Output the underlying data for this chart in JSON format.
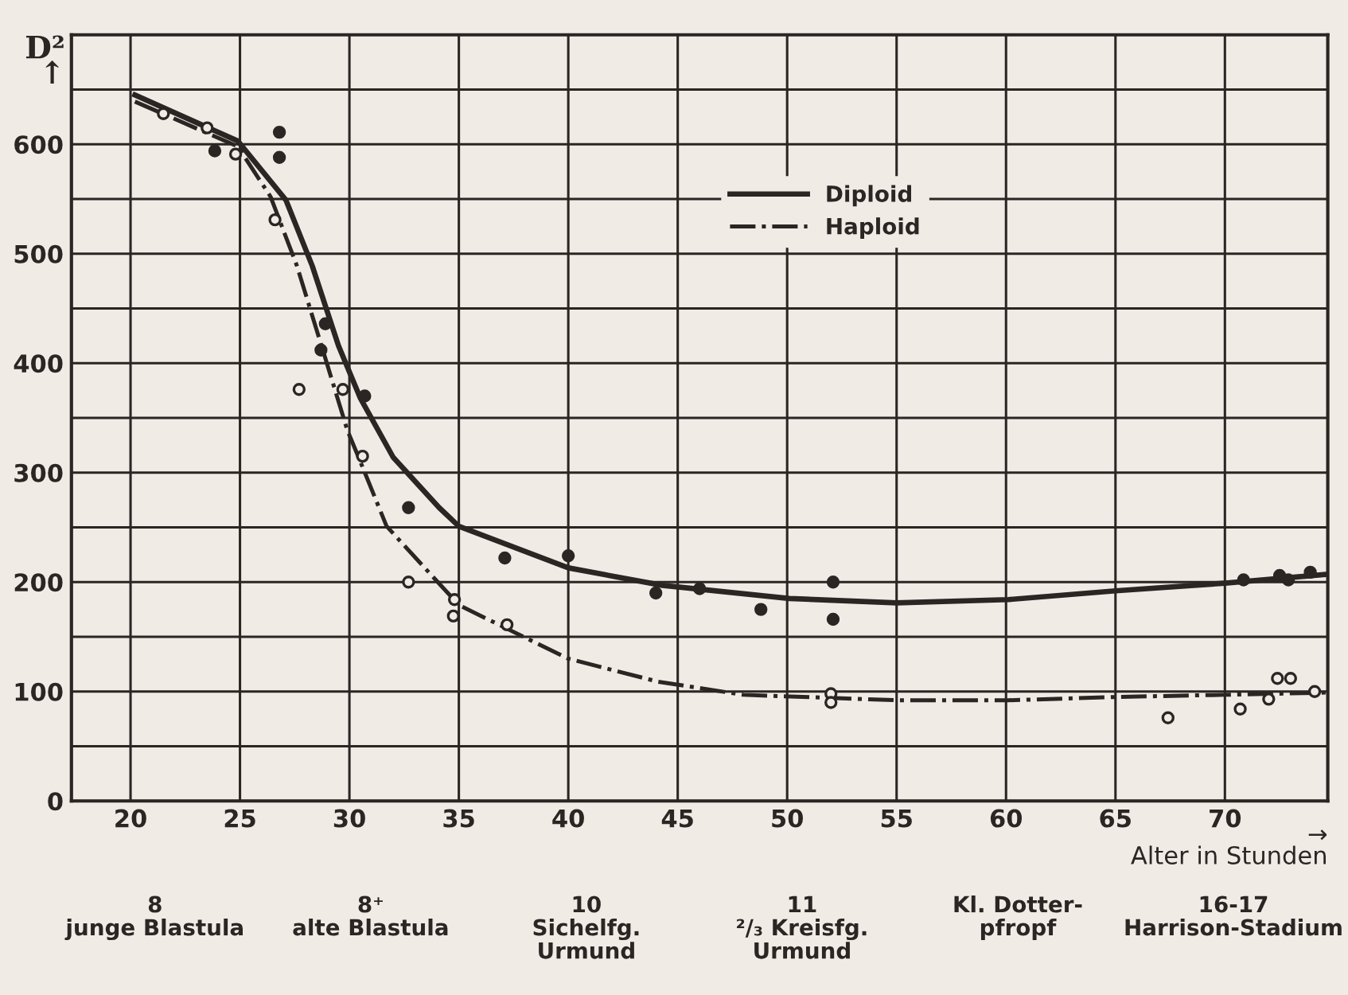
{
  "chart_data": {
    "type": "line",
    "ylabel": "D²\n↑",
    "xlabel": "→\nAlter in Stunden",
    "xlim": [
      17.3,
      74.7
    ],
    "ylim": [
      0,
      700
    ],
    "xticks": [
      20,
      25,
      30,
      35,
      40,
      45,
      50,
      55,
      60,
      65,
      70
    ],
    "yticks": [
      0,
      {
        "value": 50,
        "label": null
      },
      100,
      {
        "value": 150,
        "label": null
      },
      200,
      {
        "value": 250,
        "label": null
      },
      300,
      {
        "value": 350,
        "label": null
      },
      400,
      {
        "value": 450,
        "label": null
      },
      500,
      {
        "value": 550,
        "label": null
      },
      600,
      {
        "value": 650,
        "label": null
      }
    ],
    "grid": true,
    "legend": "top center",
    "series": [
      {
        "name": "Diploid",
        "color": "#2b2523",
        "line_style": "solid",
        "marker": "none",
        "x": [
          20.2,
          24.9,
          27.1,
          28.3,
          29.5,
          30.5,
          32.0,
          34.1,
          35.0,
          40.0,
          44.3,
          50.1,
          55.0,
          60.1,
          65.0,
          70.0,
          74.6
        ],
        "values": [
          645,
          603,
          549,
          489,
          416,
          368,
          314,
          268,
          251,
          213,
          197,
          185,
          181,
          184,
          192,
          199,
          207
        ]
      },
      {
        "name": "Haploid",
        "color": "#2b2523",
        "line_style": "dashdot",
        "marker": "none",
        "x": [
          20.2,
          24.9,
          26.4,
          27.6,
          28.8,
          29.9,
          30.5,
          31.7,
          35.0,
          40.0,
          44.1,
          48.0,
          55.0,
          60.1,
          65.0,
          70.0,
          74.6
        ],
        "values": [
          639,
          598,
          552,
          489,
          411,
          339,
          310,
          251,
          179,
          130,
          109,
          97,
          92,
          92,
          95,
          97,
          99
        ]
      },
      {
        "type": "scatter",
        "color": "#2b2523",
        "marker": "circle",
        "x": [
          23.85,
          26.8,
          26.8,
          28.9,
          28.7,
          30.7,
          32.7,
          37.1,
          40.0,
          44.0,
          46.0,
          48.8,
          52.1,
          52.1,
          70.85,
          72.5,
          72.9,
          73.9
        ],
        "values": [
          594,
          611,
          588,
          436,
          412,
          370,
          268,
          222,
          224,
          190,
          194,
          175,
          200,
          166,
          202,
          206,
          202,
          209
        ]
      },
      {
        "type": "scatter",
        "color": "#2b2523",
        "marker": "open_circle",
        "x": [
          21.5,
          23.5,
          24.8,
          26.6,
          27.7,
          29.7,
          30.6,
          32.7,
          34.8,
          34.75,
          37.2,
          52.0,
          52.0,
          67.4,
          70.7,
          72.0,
          72.4,
          73.0,
          74.1
        ],
        "values": [
          628,
          615,
          591,
          531,
          376,
          376,
          315,
          200,
          184,
          169,
          161,
          98,
          90,
          76,
          84,
          93,
          112,
          112,
          100
        ]
      }
    ],
    "annotations": [
      "8\njunge Blastula",
      "8⁺\nalte Blastula",
      "10\nSichelfg.\nUrmund",
      "11\n²/₃ Kreisfg.\nUrmund",
      "Kl. Dotter-\npfropf",
      "16-17\nHarrison-Stadium"
    ]
  }
}
